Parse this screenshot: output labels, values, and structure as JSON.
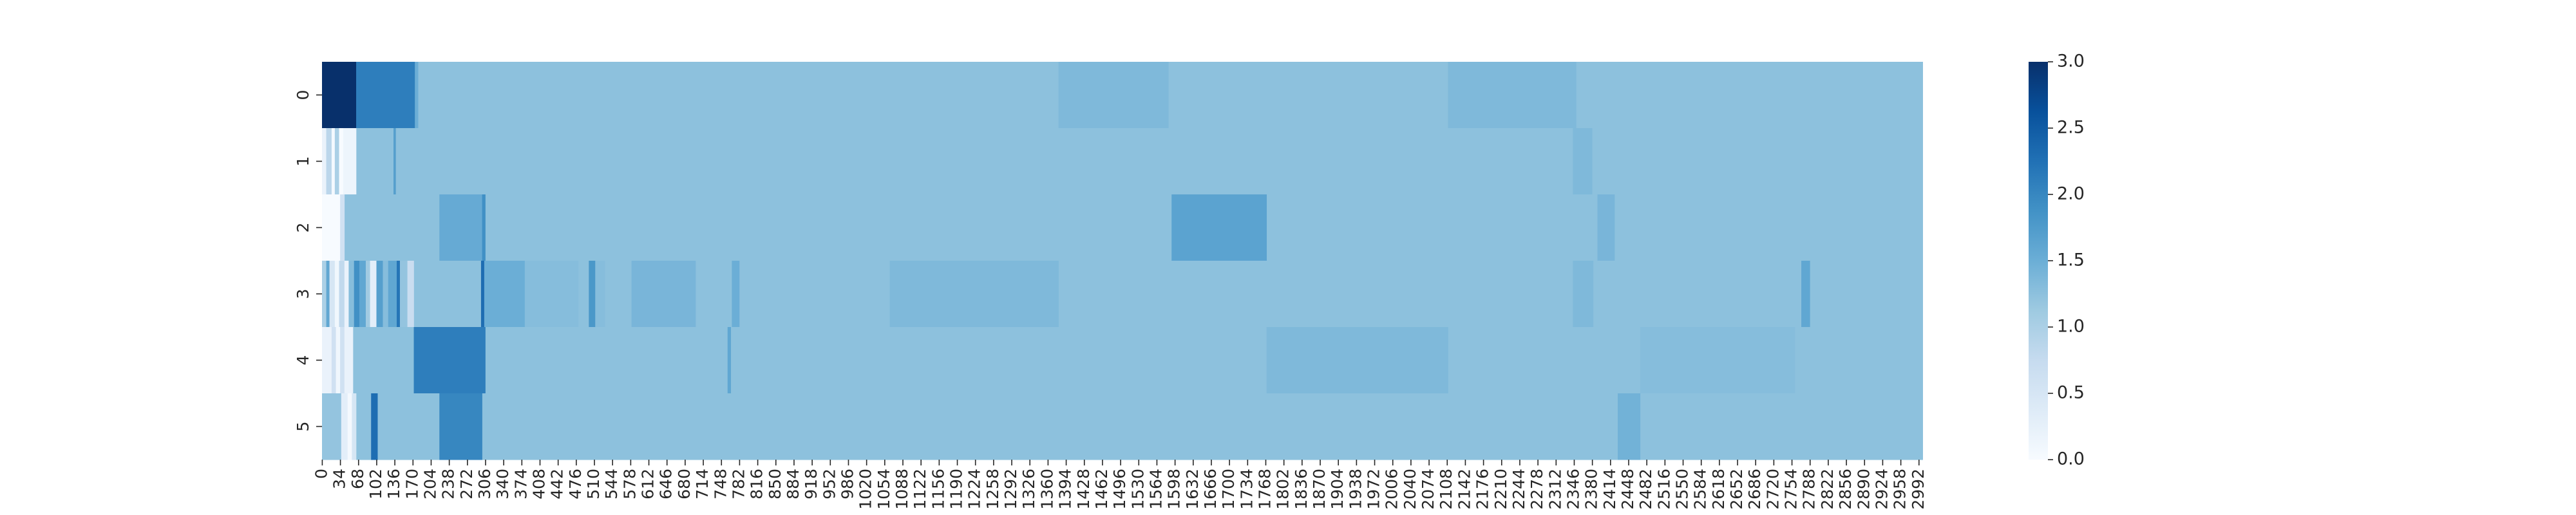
{
  "chart_data": {
    "type": "heatmap",
    "title": "",
    "xlabel": "",
    "ylabel": "",
    "x_range": [
      0,
      3000
    ],
    "x_tick_step": 34,
    "x_tick_labels": [
      "0",
      "34",
      "68",
      "102",
      "136",
      "170",
      "204",
      "238",
      "272",
      "306",
      "340",
      "374",
      "408",
      "442",
      "476",
      "510",
      "544",
      "578",
      "612",
      "646",
      "680",
      "714",
      "748",
      "782",
      "816",
      "850",
      "884",
      "918",
      "952",
      "986",
      "1020",
      "1054",
      "1088",
      "1122",
      "1156",
      "1190",
      "1224",
      "1258",
      "1292",
      "1326",
      "1360",
      "1394",
      "1428",
      "1462",
      "1496",
      "1530",
      "1564",
      "1598",
      "1632",
      "1666",
      "1700",
      "1734",
      "1768",
      "1802",
      "1836",
      "1870",
      "1904",
      "1938",
      "1972",
      "2006",
      "2040",
      "2074",
      "2108",
      "2142",
      "2176",
      "2210",
      "2244",
      "2278",
      "2312",
      "2346",
      "2380",
      "2414",
      "2448",
      "2482",
      "2516",
      "2550",
      "2584",
      "2618",
      "2652",
      "2686",
      "2720",
      "2754",
      "2788",
      "2822",
      "2856",
      "2890",
      "2924",
      "2958",
      "2992"
    ],
    "y_tick_labels": [
      "0",
      "1",
      "2",
      "3",
      "4",
      "5"
    ],
    "colormap": "Blues",
    "vmin": 0,
    "vmax": 3,
    "colorbar_ticks": [
      "0.0",
      "0.5",
      "1.0",
      "1.5",
      "2.0",
      "2.5",
      "3.0"
    ],
    "baseline_value": 1.25,
    "rows": [
      {
        "label": "0",
        "segments": [
          [
            0,
            64,
            3.0
          ],
          [
            64,
            174,
            2.1
          ],
          [
            174,
            180,
            1.5
          ],
          [
            1380,
            1586,
            1.35
          ],
          [
            2110,
            2350,
            1.35
          ]
        ]
      },
      {
        "label": "1",
        "segments": [
          [
            0,
            8,
            0.2
          ],
          [
            8,
            18,
            0.85
          ],
          [
            18,
            24,
            0.05
          ],
          [
            24,
            32,
            1.0
          ],
          [
            32,
            40,
            0.0
          ],
          [
            40,
            64,
            0.15
          ],
          [
            134,
            138,
            1.7
          ],
          [
            2344,
            2380,
            1.35
          ]
        ]
      },
      {
        "label": "2",
        "segments": [
          [
            0,
            34,
            0.0
          ],
          [
            34,
            42,
            0.6
          ],
          [
            220,
            300,
            1.55
          ],
          [
            300,
            306,
            1.9
          ],
          [
            1592,
            1770,
            1.65
          ],
          [
            2390,
            2422,
            1.4
          ]
        ]
      },
      {
        "label": "3",
        "segments": [
          [
            0,
            8,
            1.0
          ],
          [
            8,
            14,
            1.6
          ],
          [
            14,
            24,
            0.5
          ],
          [
            24,
            32,
            0.1
          ],
          [
            32,
            42,
            0.8
          ],
          [
            42,
            50,
            0.2
          ],
          [
            50,
            60,
            1.3
          ],
          [
            60,
            70,
            1.9
          ],
          [
            70,
            82,
            1.6
          ],
          [
            82,
            90,
            1.1
          ],
          [
            90,
            102,
            0.3
          ],
          [
            102,
            114,
            1.7
          ],
          [
            114,
            124,
            1.3
          ],
          [
            124,
            140,
            1.6
          ],
          [
            140,
            146,
            2.2
          ],
          [
            146,
            160,
            1.2
          ],
          [
            160,
            172,
            0.7
          ],
          [
            298,
            304,
            2.3
          ],
          [
            304,
            380,
            1.5
          ],
          [
            380,
            480,
            1.3
          ],
          [
            500,
            512,
            1.8
          ],
          [
            512,
            530,
            1.3
          ],
          [
            580,
            700,
            1.4
          ],
          [
            768,
            782,
            1.5
          ],
          [
            1064,
            1380,
            1.35
          ],
          [
            2344,
            2382,
            1.35
          ],
          [
            2772,
            2788,
            1.6
          ]
        ]
      },
      {
        "label": "4",
        "segments": [
          [
            0,
            18,
            0.2
          ],
          [
            18,
            26,
            0.6
          ],
          [
            26,
            34,
            0.1
          ],
          [
            34,
            42,
            0.6
          ],
          [
            42,
            58,
            0.2
          ],
          [
            172,
            306,
            2.1
          ],
          [
            760,
            766,
            1.6
          ],
          [
            1770,
            2110,
            1.35
          ],
          [
            2470,
            2760,
            1.3
          ]
        ]
      },
      {
        "label": "5",
        "segments": [
          [
            0,
            36,
            1.2
          ],
          [
            36,
            48,
            0.3
          ],
          [
            48,
            56,
            0.05
          ],
          [
            56,
            64,
            0.5
          ],
          [
            92,
            104,
            2.3
          ],
          [
            220,
            300,
            2.0
          ],
          [
            2428,
            2470,
            1.45
          ]
        ]
      }
    ]
  }
}
